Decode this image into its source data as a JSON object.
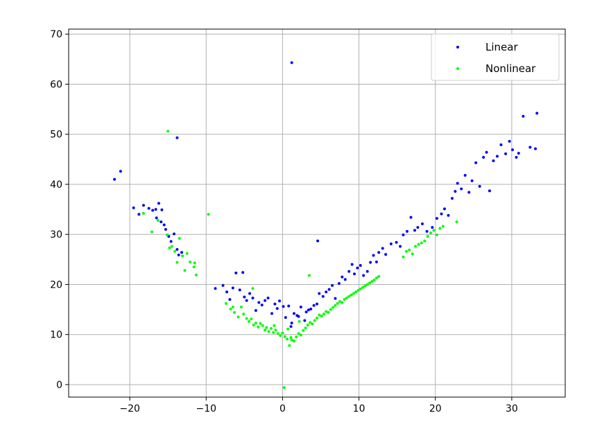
{
  "chart_data": {
    "type": "scatter",
    "title": "",
    "xlabel": "",
    "ylabel": "",
    "xlim": [
      -28,
      37
    ],
    "ylim": [
      -2.5,
      71
    ],
    "xticks": [
      -20,
      -10,
      0,
      10,
      20,
      30
    ],
    "yticks": [
      0,
      10,
      20,
      30,
      40,
      50,
      60,
      70
    ],
    "xtick_labels": [
      "−20",
      "−10",
      "0",
      "10",
      "20",
      "30"
    ],
    "ytick_labels": [
      "0",
      "10",
      "20",
      "30",
      "40",
      "50",
      "60",
      "70"
    ],
    "grid": true,
    "legend_position": "top-right",
    "series": [
      {
        "name": "Linear",
        "color": "#0000ff",
        "points": [
          [
            -22,
            41
          ],
          [
            -21.2,
            42.6
          ],
          [
            -19.5,
            35.3
          ],
          [
            -18.8,
            34
          ],
          [
            -18.2,
            35.8
          ],
          [
            -17.5,
            35.2
          ],
          [
            -17,
            34.8
          ],
          [
            -16.6,
            35
          ],
          [
            -16.2,
            36.2
          ],
          [
            -15.8,
            34.9
          ],
          [
            -16.5,
            33.3
          ],
          [
            -15.9,
            32.5
          ],
          [
            -15.3,
            31
          ],
          [
            -15.5,
            31.9
          ],
          [
            -14.9,
            29.6
          ],
          [
            -14.6,
            28.6
          ],
          [
            -14.2,
            30.1
          ],
          [
            -13.8,
            27
          ],
          [
            -13.6,
            25.9
          ],
          [
            -13.2,
            26.4
          ],
          [
            -13.8,
            49.3
          ],
          [
            -8.8,
            19.2
          ],
          [
            -7.8,
            19.8
          ],
          [
            -7.3,
            18.5
          ],
          [
            -6.9,
            17
          ],
          [
            -6.5,
            19.3
          ],
          [
            -6.1,
            22.3
          ],
          [
            -5.6,
            18.9
          ],
          [
            -5.2,
            22.4
          ],
          [
            -5,
            17.5
          ],
          [
            -4.7,
            16.8
          ],
          [
            -4.3,
            18.2
          ],
          [
            -3.9,
            17.3
          ],
          [
            -3.5,
            14.8
          ],
          [
            -3.1,
            16.4
          ],
          [
            -2.7,
            15.9
          ],
          [
            -2.3,
            16.8
          ],
          [
            -1.9,
            17.3
          ],
          [
            -1.4,
            14.2
          ],
          [
            -1,
            16.1
          ],
          [
            -0.7,
            15.2
          ],
          [
            -0.4,
            16.7
          ],
          [
            0.1,
            15.6
          ],
          [
            0.4,
            13.4
          ],
          [
            0.8,
            15.7
          ],
          [
            1.2,
            12.3
          ],
          [
            1.5,
            14.2
          ],
          [
            1.9,
            13.8
          ],
          [
            2.4,
            15.5
          ],
          [
            2.9,
            12.8
          ],
          [
            3.1,
            14.5
          ],
          [
            3.4,
            14.9
          ],
          [
            3.7,
            15.1
          ],
          [
            4.1,
            15.8
          ],
          [
            4.5,
            16.1
          ],
          [
            4.8,
            18.2
          ],
          [
            5.3,
            17.6
          ],
          [
            5.7,
            18.5
          ],
          [
            6.1,
            19
          ],
          [
            6.5,
            19.8
          ],
          [
            6.9,
            17.2
          ],
          [
            7.4,
            20.2
          ],
          [
            7.8,
            21.5
          ],
          [
            8.2,
            21
          ],
          [
            8.7,
            22.6
          ],
          [
            9.1,
            24
          ],
          [
            9.4,
            22.1
          ],
          [
            9.8,
            23.3
          ],
          [
            10.2,
            23.8
          ],
          [
            10.6,
            21.8
          ],
          [
            11.1,
            22.6
          ],
          [
            11.5,
            24.4
          ],
          [
            11.9,
            25.8
          ],
          [
            12.3,
            24.5
          ],
          [
            12.6,
            26.4
          ],
          [
            13.1,
            27.2
          ],
          [
            13.5,
            26
          ],
          [
            14.2,
            28.1
          ],
          [
            14.9,
            28.4
          ],
          [
            15.4,
            27.6
          ],
          [
            15.8,
            29.9
          ],
          [
            16.3,
            30.6
          ],
          [
            16.8,
            33.4
          ],
          [
            17.3,
            30.8
          ],
          [
            17.7,
            31.4
          ],
          [
            18.3,
            32.1
          ],
          [
            18.9,
            30.6
          ],
          [
            19.6,
            31.4
          ],
          [
            20.2,
            33.2
          ],
          [
            20.8,
            34.1
          ],
          [
            21.2,
            35.1
          ],
          [
            21.7,
            33.8
          ],
          [
            22.2,
            37.2
          ],
          [
            22.6,
            38.6
          ],
          [
            22.9,
            40.2
          ],
          [
            23.4,
            39.1
          ],
          [
            23.9,
            41.8
          ],
          [
            24.4,
            38.4
          ],
          [
            24.8,
            40.7
          ],
          [
            25.3,
            44.3
          ],
          [
            25.8,
            39.6
          ],
          [
            26.3,
            45.4
          ],
          [
            26.7,
            46.4
          ],
          [
            27.1,
            38.7
          ],
          [
            27.6,
            44.7
          ],
          [
            28.1,
            45.6
          ],
          [
            28.6,
            47.9
          ],
          [
            29.2,
            46.1
          ],
          [
            29.7,
            48.6
          ],
          [
            30.1,
            46.9
          ],
          [
            30.6,
            45.4
          ],
          [
            30.9,
            46.2
          ],
          [
            31.5,
            53.6
          ],
          [
            32.4,
            47.4
          ],
          [
            33.1,
            47.1
          ],
          [
            33.3,
            54.2
          ],
          [
            1.2,
            64.3
          ],
          [
            4.6,
            28.7
          ],
          [
            1.1,
            11.6
          ],
          [
            2.1,
            13.6
          ]
        ]
      },
      {
        "name": "Nonlinear",
        "color": "#00ff00",
        "points": [
          [
            -18.2,
            34.2
          ],
          [
            -17.1,
            30.5
          ],
          [
            -16.3,
            32.8
          ],
          [
            -15.1,
            29.9
          ],
          [
            -14.8,
            27.3
          ],
          [
            -14.5,
            27.6
          ],
          [
            -14.1,
            26.6
          ],
          [
            -13.8,
            24.4
          ],
          [
            -13.5,
            29.2
          ],
          [
            -13.1,
            25.7
          ],
          [
            -12.8,
            22.8
          ],
          [
            -12.5,
            26.2
          ],
          [
            -12.1,
            24.5
          ],
          [
            -11.6,
            23.5
          ],
          [
            -11.3,
            21.9
          ],
          [
            -11.5,
            24.3
          ],
          [
            -15,
            50.6
          ],
          [
            -9.7,
            34
          ],
          [
            -7.4,
            16.2
          ],
          [
            -6.8,
            15.1
          ],
          [
            -6.3,
            14.4
          ],
          [
            -5.8,
            13.5
          ],
          [
            -5.4,
            15.5
          ],
          [
            -5.1,
            14.1
          ],
          [
            -4.7,
            13.2
          ],
          [
            -4.4,
            12.6
          ],
          [
            -4.1,
            13.1
          ],
          [
            -3.8,
            11.9
          ],
          [
            -3.5,
            12.3
          ],
          [
            -3.2,
            11.5
          ],
          [
            -2.9,
            12.2
          ],
          [
            -2.6,
            11.8
          ],
          [
            -2.3,
            10.9
          ],
          [
            -2.1,
            11.4
          ],
          [
            -1.8,
            10.6
          ],
          [
            -1.5,
            11.2
          ],
          [
            -1.2,
            10.4
          ],
          [
            -0.9,
            10.9
          ],
          [
            -0.6,
            10.2
          ],
          [
            -0.3,
            9.8
          ],
          [
            0,
            10.3
          ],
          [
            0.3,
            9.6
          ],
          [
            0.6,
            9.1
          ],
          [
            0.9,
            7.8
          ],
          [
            1.2,
            8.9
          ],
          [
            1.5,
            8.7
          ],
          [
            1.8,
            9.5
          ],
          [
            2.1,
            10.2
          ],
          [
            2.4,
            9.9
          ],
          [
            2.7,
            10.8
          ],
          [
            3,
            11.3
          ],
          [
            3.3,
            11.9
          ],
          [
            3.6,
            12.4
          ],
          [
            3.9,
            12.1
          ],
          [
            4.2,
            12.8
          ],
          [
            4.5,
            13.3
          ],
          [
            4.8,
            13.9
          ],
          [
            5.1,
            13.7
          ],
          [
            5.4,
            14.1
          ],
          [
            5.7,
            14.6
          ],
          [
            6,
            14.4
          ],
          [
            6.3,
            15
          ],
          [
            6.6,
            15.4
          ],
          [
            6.9,
            15.8
          ],
          [
            7.2,
            16.2
          ],
          [
            7.5,
            16.6
          ],
          [
            7.8,
            16.4
          ],
          [
            8.1,
            17
          ],
          [
            8.4,
            17.3
          ],
          [
            8.7,
            17.6
          ],
          [
            9,
            17.9
          ],
          [
            9.3,
            18.2
          ],
          [
            9.6,
            18.5
          ],
          [
            9.9,
            18.8
          ],
          [
            10.2,
            19.1
          ],
          [
            10.5,
            19.4
          ],
          [
            10.8,
            19.7
          ],
          [
            11.1,
            20
          ],
          [
            11.4,
            20.3
          ],
          [
            11.7,
            20.6
          ],
          [
            12,
            20.9
          ],
          [
            12.3,
            21.3
          ],
          [
            12.6,
            21.6
          ],
          [
            15.8,
            25.5
          ],
          [
            16.2,
            26.6
          ],
          [
            16.6,
            26.9
          ],
          [
            17,
            26.1
          ],
          [
            17.4,
            27.6
          ],
          [
            17.8,
            28
          ],
          [
            18.2,
            28.3
          ],
          [
            18.6,
            28.7
          ],
          [
            19,
            29.6
          ],
          [
            19.4,
            30.3
          ],
          [
            19.8,
            30.8
          ],
          [
            20.2,
            29.9
          ],
          [
            20.6,
            31.2
          ],
          [
            21,
            31.6
          ],
          [
            22.8,
            32.5
          ],
          [
            -3.9,
            19.2
          ],
          [
            -6.5,
            15.5
          ],
          [
            0.2,
            -0.6
          ],
          [
            3.5,
            21.8
          ],
          [
            1.1,
            9.4
          ],
          [
            2.2,
            12.6
          ],
          [
            -1.1,
            11.8
          ],
          [
            0.7,
            11.1
          ]
        ]
      }
    ]
  }
}
